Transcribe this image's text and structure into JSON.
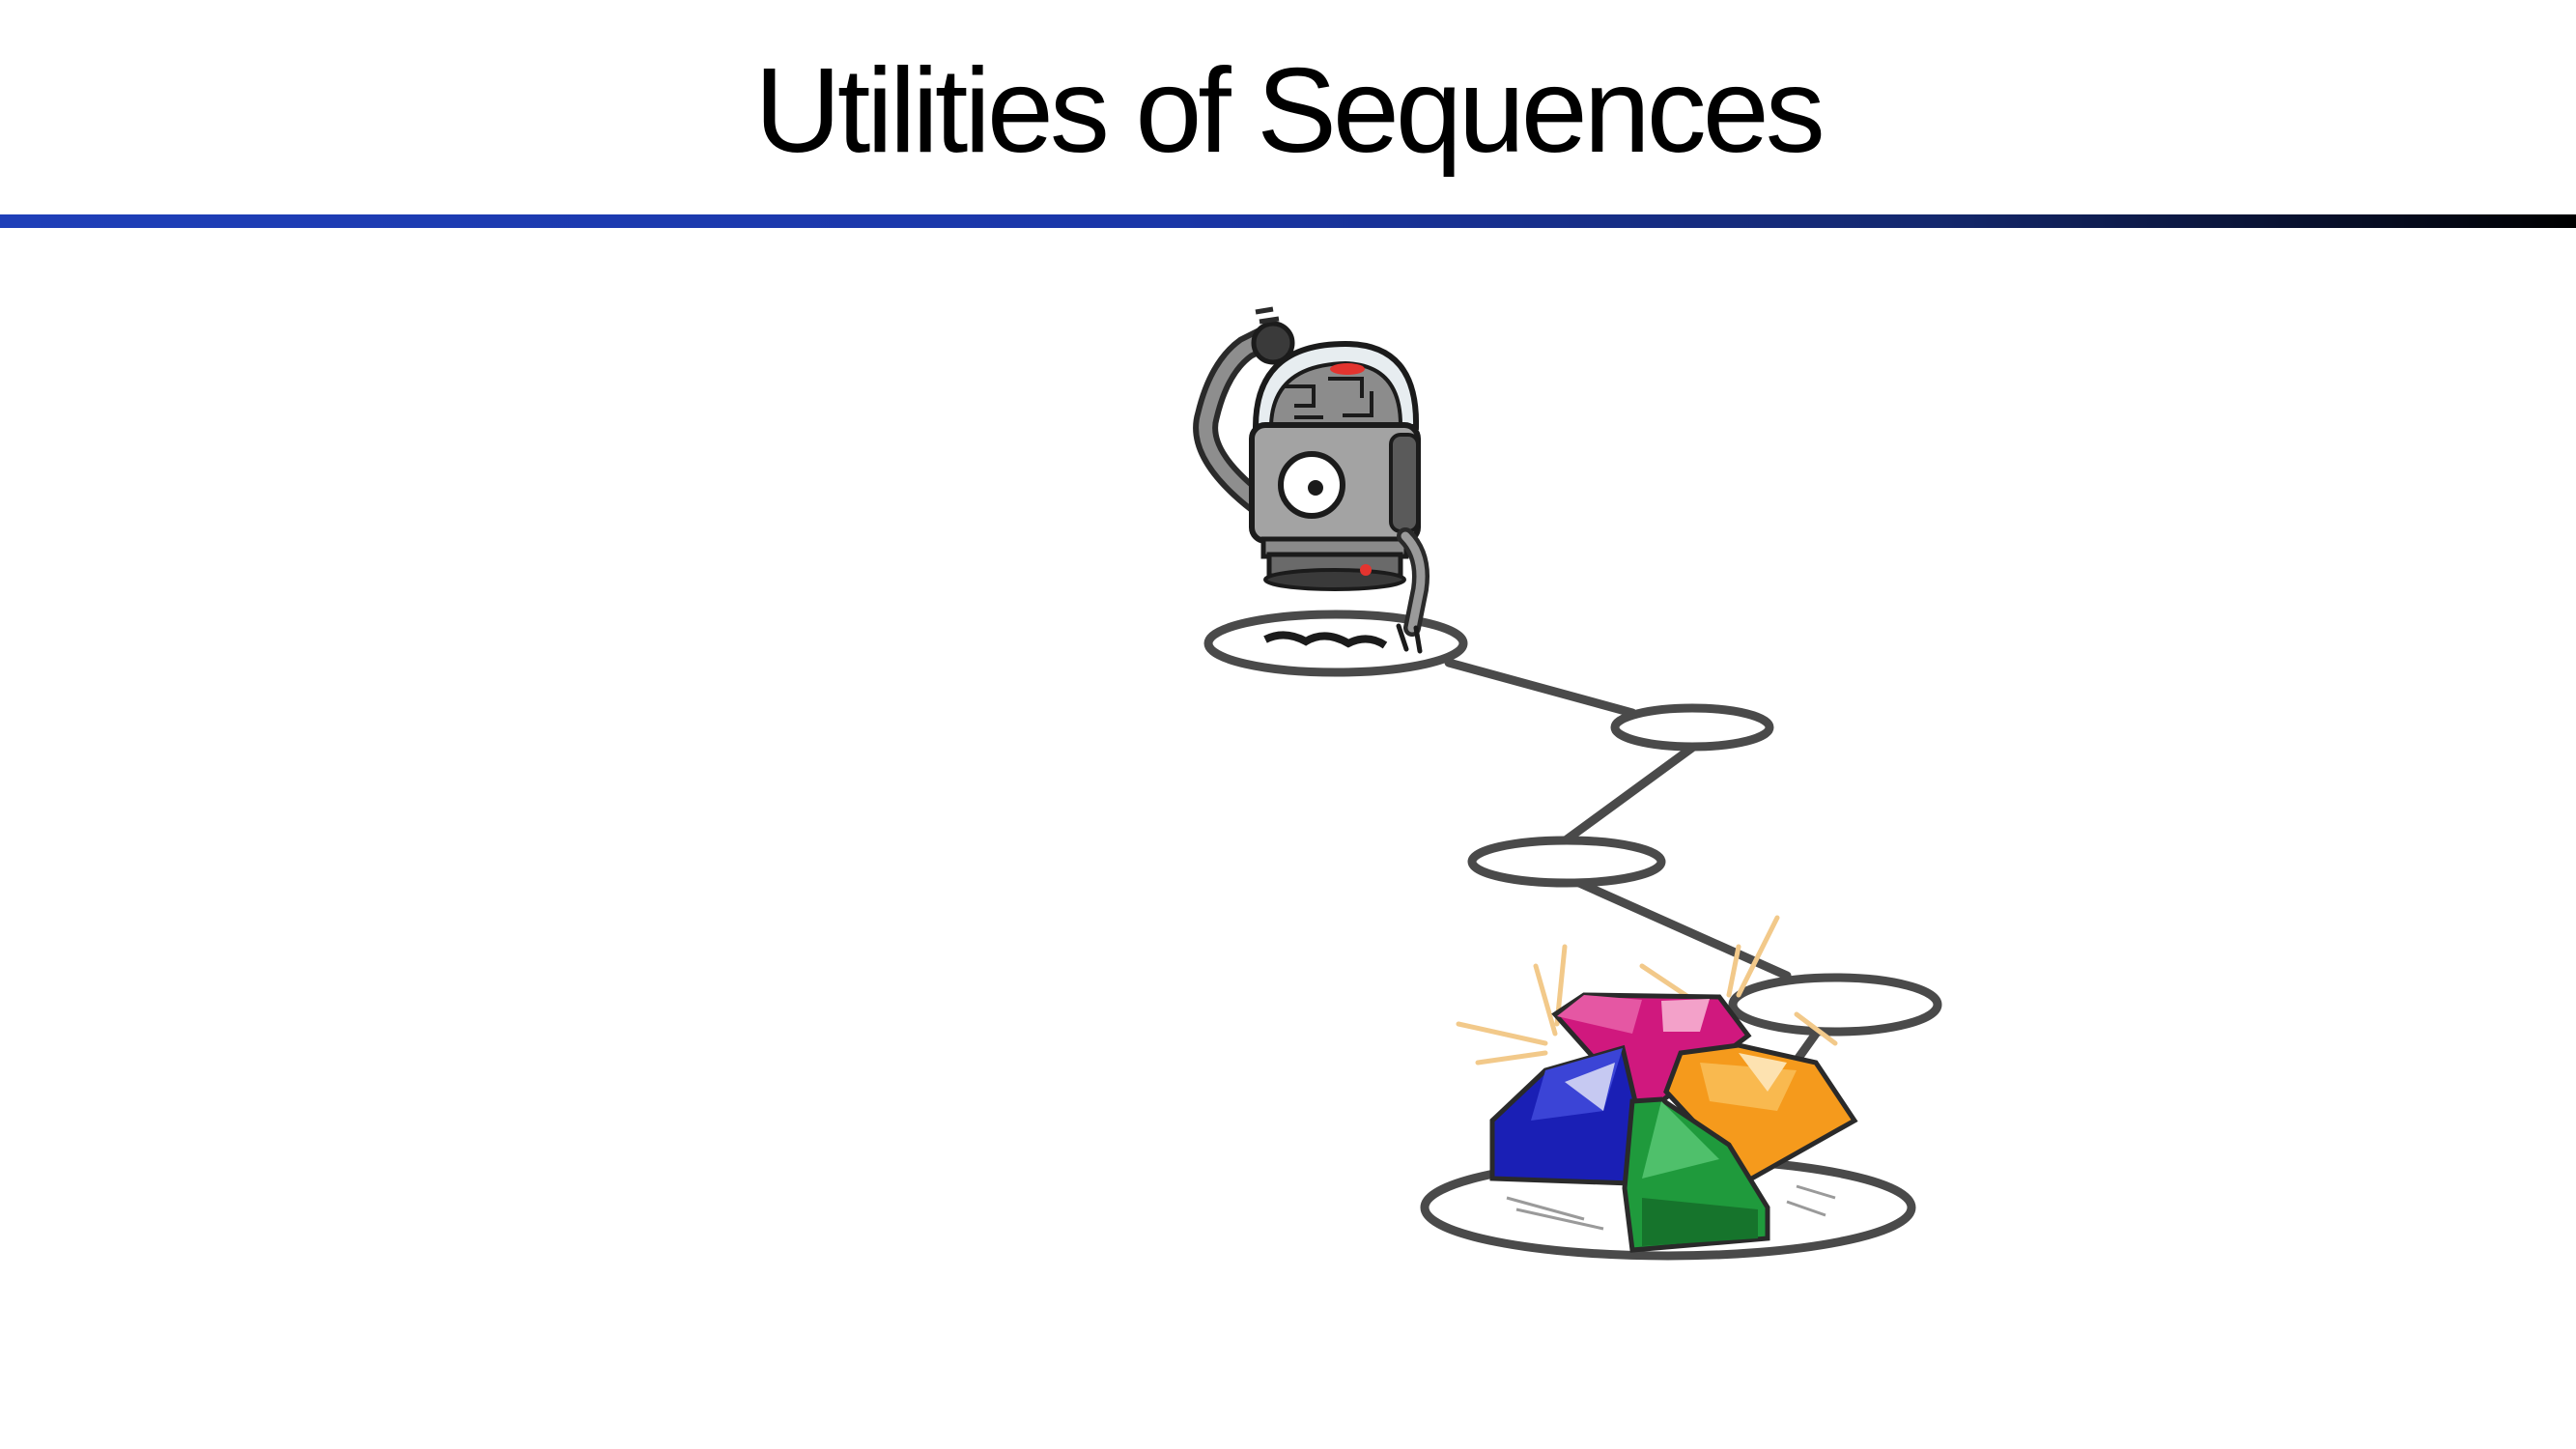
{
  "slide": {
    "title": "Utilities of Sequences"
  },
  "illustration": {
    "robot": "thinking-robot",
    "path_nodes": 5,
    "goal": "pile-of-gems",
    "gem_colors": {
      "magenta": "#d0187e",
      "blue": "#1a1fb5",
      "orange": "#f59a1c",
      "green": "#1f9a3c"
    }
  },
  "colors": {
    "rule_start": "#1f3fb8",
    "rule_end": "#000000",
    "path_stroke": "#4a4a4a"
  }
}
